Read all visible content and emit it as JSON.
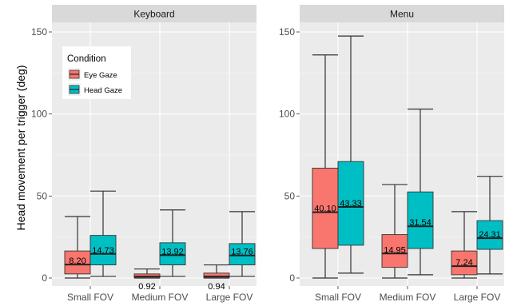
{
  "chart_data": {
    "type": "boxplot",
    "ylabel": "Head movement per trigger (deg)",
    "ylim": [
      0,
      155
    ],
    "yticks": [
      0,
      50,
      100,
      150
    ],
    "categories": [
      "Small FOV",
      "Medium FOV",
      "Large FOV"
    ],
    "legend": {
      "title": "Condition",
      "placement": "top-left inside first panel",
      "entries": [
        {
          "name": "Eye Gaze",
          "color": "#f8766d"
        },
        {
          "name": "Head Gaze",
          "color": "#00bfc4"
        }
      ]
    },
    "panels": [
      {
        "title": "Keyboard",
        "groups": [
          {
            "category": "Small FOV",
            "boxes": [
              {
                "condition": "Eye Gaze",
                "min": 0,
                "q1": 2.5,
                "median": 8.2,
                "q3": 16.5,
                "max": 37.5,
                "label": "8.20",
                "label_pos": "inside"
              },
              {
                "condition": "Head Gaze",
                "min": 1,
                "q1": 8,
                "median": 14.73,
                "q3": 26,
                "max": 53,
                "label": "14.73",
                "label_pos": "inside"
              }
            ]
          },
          {
            "category": "Medium FOV",
            "boxes": [
              {
                "condition": "Eye Gaze",
                "min": 0,
                "q1": 0.1,
                "median": 0.92,
                "q3": 2.5,
                "max": 5.5,
                "label": "0.92",
                "label_pos": "below"
              },
              {
                "condition": "Head Gaze",
                "min": 1,
                "q1": 8,
                "median": 13.92,
                "q3": 21.5,
                "max": 41.5,
                "label": "13.92",
                "label_pos": "inside"
              }
            ]
          },
          {
            "category": "Large FOV",
            "boxes": [
              {
                "condition": "Eye Gaze",
                "min": 0,
                "q1": 0.1,
                "median": 0.94,
                "q3": 3,
                "max": 8,
                "label": "0.94",
                "label_pos": "below"
              },
              {
                "condition": "Head Gaze",
                "min": 1,
                "q1": 8,
                "median": 13.76,
                "q3": 21,
                "max": 40.5,
                "label": "13.76",
                "label_pos": "inside"
              }
            ]
          }
        ]
      },
      {
        "title": "Menu",
        "groups": [
          {
            "category": "Small FOV",
            "boxes": [
              {
                "condition": "Eye Gaze",
                "min": 0,
                "q1": 18,
                "median": 40.1,
                "q3": 67,
                "max": 136,
                "label": "40.10",
                "label_pos": "inside"
              },
              {
                "condition": "Head Gaze",
                "min": 3,
                "q1": 20,
                "median": 43.33,
                "q3": 71,
                "max": 147.5,
                "label": "43.33",
                "label_pos": "inside"
              }
            ]
          },
          {
            "category": "Medium FOV",
            "boxes": [
              {
                "condition": "Eye Gaze",
                "min": 0,
                "q1": 6.5,
                "median": 14.95,
                "q3": 26.5,
                "max": 57,
                "label": "14.95",
                "label_pos": "inside"
              },
              {
                "condition": "Head Gaze",
                "min": 2,
                "q1": 18,
                "median": 31.54,
                "q3": 52.5,
                "max": 103,
                "label": "31.54",
                "label_pos": "inside"
              }
            ]
          },
          {
            "category": "Large FOV",
            "boxes": [
              {
                "condition": "Eye Gaze",
                "min": 0,
                "q1": 2,
                "median": 7.24,
                "q3": 16.5,
                "max": 40.5,
                "label": "7.24",
                "label_pos": "inside"
              },
              {
                "condition": "Head Gaze",
                "min": 2.5,
                "q1": 17.5,
                "median": 24.31,
                "q3": 35,
                "max": 62,
                "label": "24.31",
                "label_pos": "inside"
              }
            ]
          }
        ]
      }
    ]
  }
}
